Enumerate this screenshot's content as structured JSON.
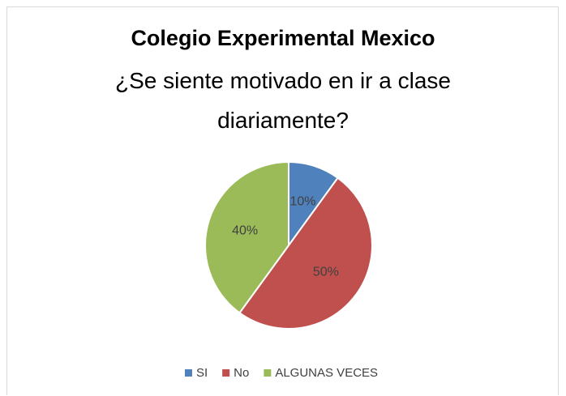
{
  "chart_data": {
    "type": "pie",
    "title": "Colegio Experimental Mexico",
    "subtitle": "¿Se siente motivado en ir a clase diariamente?",
    "categories": [
      "SI",
      "No",
      "ALGUNAS VECES"
    ],
    "values": [
      10,
      50,
      40
    ],
    "value_labels": [
      "10%",
      "50%",
      "40%"
    ],
    "colors": [
      "#4f81bd",
      "#c0504d",
      "#9bbb59"
    ],
    "legend": "bottom"
  }
}
